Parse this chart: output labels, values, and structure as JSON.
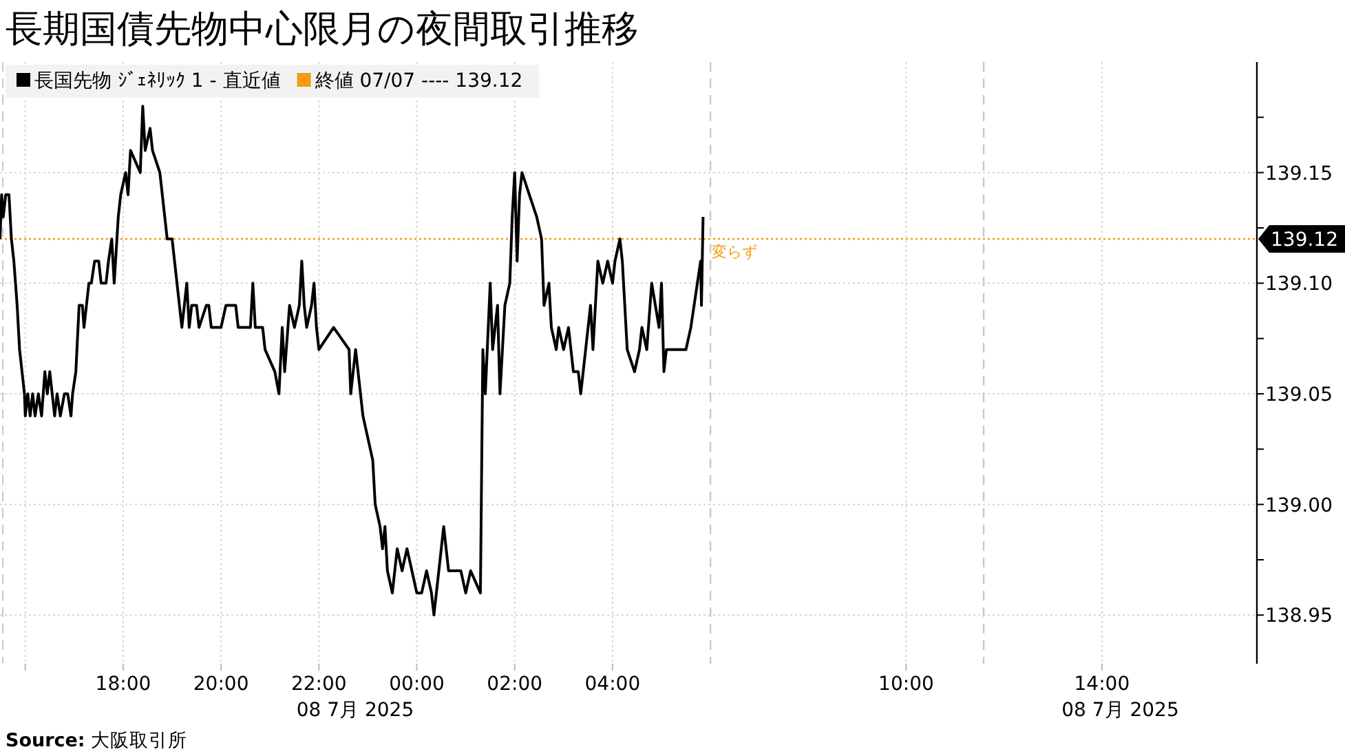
{
  "chart_data": {
    "type": "line",
    "title": "長期国債先物中心限月の夜間取引推移",
    "xlim": [
      "2025-07-07T15:29",
      "2025-07-08T17:10"
    ],
    "ylim": [
      138.928,
      139.2
    ],
    "xticks": [
      {
        "value": "2025-07-07T16:00",
        "label": null
      },
      {
        "value": "2025-07-07T18:00",
        "label": "18:00"
      },
      {
        "value": "2025-07-07T20:00",
        "label": "20:00"
      },
      {
        "value": "2025-07-07T22:00",
        "label": "22:00"
      },
      {
        "value": "2025-07-08T00:00",
        "label": "00:00"
      },
      {
        "value": "2025-07-08T02:00",
        "label": "02:00"
      },
      {
        "value": "2025-07-08T04:00",
        "label": "04:00"
      },
      {
        "value": "2025-07-08T10:00",
        "label": "10:00"
      },
      {
        "value": "2025-07-08T14:00",
        "label": "14:00"
      }
    ],
    "yticks": [
      138.95,
      {
        "value": 138.975,
        "label": null
      },
      {
        "value": 139.0,
        "label": "139.00"
      },
      {
        "value": 139.025,
        "label": null
      },
      139.05,
      {
        "value": 139.075,
        "label": null
      },
      {
        "value": 139.1,
        "label": "139.10"
      },
      {
        "value": 139.12,
        "label": "139.12"
      },
      {
        "value": 139.125,
        "label": null
      },
      139.15,
      {
        "value": 139.175,
        "label": null
      }
    ],
    "grid": true,
    "legend": "top left",
    "series": [
      {
        "name": "長国先物 ｼﾞｪﾈﾘｯｸ 1 - 直近値",
        "color": "#000000",
        "x": [
          "2025-07-07T15:29",
          "2025-07-07T15:31",
          "2025-07-07T15:33",
          "2025-07-07T15:36",
          "2025-07-07T15:40",
          "2025-07-07T15:43",
          "2025-07-07T15:46",
          "2025-07-07T15:48",
          "2025-07-07T15:50",
          "2025-07-07T15:53",
          "2025-07-07T15:56",
          "2025-07-07T15:59",
          "2025-07-07T16:00",
          "2025-07-07T16:03",
          "2025-07-07T16:06",
          "2025-07-07T16:09",
          "2025-07-07T16:12",
          "2025-07-07T16:16",
          "2025-07-07T16:20",
          "2025-07-07T16:24",
          "2025-07-07T16:27",
          "2025-07-07T16:30",
          "2025-07-07T16:33",
          "2025-07-07T16:36",
          "2025-07-07T16:39",
          "2025-07-07T16:43",
          "2025-07-07T16:48",
          "2025-07-07T16:52",
          "2025-07-07T16:56",
          "2025-07-07T16:58",
          "2025-07-07T17:02",
          "2025-07-07T17:06",
          "2025-07-07T17:10",
          "2025-07-07T17:12",
          "2025-07-07T17:18",
          "2025-07-07T17:21",
          "2025-07-07T17:25",
          "2025-07-07T17:30",
          "2025-07-07T17:33",
          "2025-07-07T17:39",
          "2025-07-07T17:42",
          "2025-07-07T17:46",
          "2025-07-07T17:49",
          "2025-07-07T17:54",
          "2025-07-07T17:57",
          "2025-07-07T18:03",
          "2025-07-07T18:06",
          "2025-07-07T18:09",
          "2025-07-07T18:21",
          "2025-07-07T18:24",
          "2025-07-07T18:27",
          "2025-07-07T18:33",
          "2025-07-07T18:36",
          "2025-07-07T18:45",
          "2025-07-07T18:51",
          "2025-07-07T18:54",
          "2025-07-07T19:00",
          "2025-07-07T19:03",
          "2025-07-07T19:06",
          "2025-07-07T19:09",
          "2025-07-07T19:12",
          "2025-07-07T19:15",
          "2025-07-07T19:18",
          "2025-07-07T19:21",
          "2025-07-07T19:24",
          "2025-07-07T19:30",
          "2025-07-07T19:33",
          "2025-07-07T19:42",
          "2025-07-07T19:45",
          "2025-07-07T19:48",
          "2025-07-07T20:00",
          "2025-07-07T20:06",
          "2025-07-07T20:18",
          "2025-07-07T20:21",
          "2025-07-07T20:36",
          "2025-07-07T20:39",
          "2025-07-07T20:42",
          "2025-07-07T20:51",
          "2025-07-07T20:54",
          "2025-07-07T21:06",
          "2025-07-07T21:11",
          "2025-07-07T21:15",
          "2025-07-07T21:18",
          "2025-07-07T21:24",
          "2025-07-07T21:30",
          "2025-07-07T21:36",
          "2025-07-07T21:39",
          "2025-07-07T21:42",
          "2025-07-07T21:45",
          "2025-07-07T21:51",
          "2025-07-07T21:54",
          "2025-07-07T21:57",
          "2025-07-07T22:00",
          "2025-07-07T22:18",
          "2025-07-07T22:37",
          "2025-07-07T22:39",
          "2025-07-07T22:42",
          "2025-07-07T22:45",
          "2025-07-07T22:48",
          "2025-07-07T22:51",
          "2025-07-07T22:54",
          "2025-07-07T23:00",
          "2025-07-07T23:06",
          "2025-07-07T23:09",
          "2025-07-07T23:15",
          "2025-07-07T23:18",
          "2025-07-07T23:21",
          "2025-07-07T23:24",
          "2025-07-07T23:30",
          "2025-07-07T23:33",
          "2025-07-07T23:36",
          "2025-07-07T23:42",
          "2025-07-07T23:48",
          "2025-07-07T23:54",
          "2025-07-08T00:00",
          "2025-07-08T00:06",
          "2025-07-08T00:12",
          "2025-07-08T00:18",
          "2025-07-08T00:21",
          "2025-07-08T00:24",
          "2025-07-08T00:30",
          "2025-07-08T00:33",
          "2025-07-08T00:39",
          "2025-07-08T00:54",
          "2025-07-08T01:00",
          "2025-07-08T01:06",
          "2025-07-08T01:18",
          "2025-07-08T01:21",
          "2025-07-08T01:24",
          "2025-07-08T01:30",
          "2025-07-08T01:33",
          "2025-07-08T01:39",
          "2025-07-08T01:42",
          "2025-07-08T01:48",
          "2025-07-08T01:54",
          "2025-07-08T01:57",
          "2025-07-08T02:00",
          "2025-07-08T02:03",
          "2025-07-08T02:06",
          "2025-07-08T02:09",
          "2025-07-08T02:18",
          "2025-07-08T02:27",
          "2025-07-08T02:33",
          "2025-07-08T02:36",
          "2025-07-08T02:42",
          "2025-07-08T02:45",
          "2025-07-08T02:51",
          "2025-07-08T02:54",
          "2025-07-08T03:00",
          "2025-07-08T03:06",
          "2025-07-08T03:12",
          "2025-07-08T03:18",
          "2025-07-08T03:21",
          "2025-07-08T03:27",
          "2025-07-08T03:33",
          "2025-07-08T03:36",
          "2025-07-08T03:42",
          "2025-07-08T03:48",
          "2025-07-08T03:54",
          "2025-07-08T04:00",
          "2025-07-08T04:03",
          "2025-07-08T04:09",
          "2025-07-08T04:12",
          "2025-07-08T04:18",
          "2025-07-08T04:27",
          "2025-07-08T04:33",
          "2025-07-08T04:36",
          "2025-07-08T04:42",
          "2025-07-08T04:48",
          "2025-07-08T04:57",
          "2025-07-08T05:00",
          "2025-07-08T05:03",
          "2025-07-08T05:06",
          "2025-07-08T05:30",
          "2025-07-08T05:36",
          "2025-07-08T05:48",
          "2025-07-08T05:49",
          "2025-07-08T05:51"
        ],
        "values": [
          139.12,
          139.14,
          139.13,
          139.14,
          139.14,
          139.12,
          139.11,
          139.1,
          139.09,
          139.07,
          139.06,
          139.05,
          139.04,
          139.05,
          139.04,
          139.05,
          139.04,
          139.05,
          139.04,
          139.06,
          139.05,
          139.06,
          139.05,
          139.04,
          139.05,
          139.04,
          139.05,
          139.05,
          139.04,
          139.05,
          139.06,
          139.09,
          139.09,
          139.08,
          139.1,
          139.1,
          139.11,
          139.11,
          139.1,
          139.1,
          139.11,
          139.12,
          139.1,
          139.13,
          139.14,
          139.15,
          139.14,
          139.16,
          139.15,
          139.18,
          139.16,
          139.17,
          139.16,
          139.15,
          139.13,
          139.12,
          139.12,
          139.11,
          139.1,
          139.09,
          139.08,
          139.09,
          139.1,
          139.08,
          139.09,
          139.09,
          139.08,
          139.09,
          139.09,
          139.08,
          139.08,
          139.09,
          139.09,
          139.08,
          139.08,
          139.1,
          139.08,
          139.08,
          139.07,
          139.06,
          139.05,
          139.08,
          139.06,
          139.09,
          139.08,
          139.09,
          139.11,
          139.09,
          139.08,
          139.09,
          139.1,
          139.08,
          139.07,
          139.08,
          139.07,
          139.05,
          139.06,
          139.07,
          139.06,
          139.05,
          139.04,
          139.03,
          139.02,
          139.0,
          138.99,
          138.98,
          138.99,
          138.97,
          138.96,
          138.97,
          138.98,
          138.97,
          138.98,
          138.97,
          138.96,
          138.96,
          138.97,
          138.96,
          138.95,
          138.96,
          138.98,
          138.99,
          138.97,
          138.97,
          138.96,
          138.97,
          138.96,
          139.07,
          139.05,
          139.1,
          139.07,
          139.09,
          139.05,
          139.09,
          139.1,
          139.13,
          139.15,
          139.11,
          139.14,
          139.15,
          139.14,
          139.13,
          139.12,
          139.09,
          139.1,
          139.08,
          139.07,
          139.08,
          139.07,
          139.08,
          139.06,
          139.06,
          139.05,
          139.07,
          139.09,
          139.07,
          139.11,
          139.1,
          139.11,
          139.1,
          139.11,
          139.12,
          139.11,
          139.07,
          139.06,
          139.07,
          139.08,
          139.07,
          139.1,
          139.08,
          139.1,
          139.06,
          139.07,
          139.07,
          139.08,
          139.11,
          139.09,
          139.13
        ]
      }
    ],
    "ref_lines": [
      {
        "axis": "y",
        "value": 139.12,
        "label": "終値 07/07 ---- 139.12",
        "color": "#f39c12",
        "line_style": "dotted"
      },
      {
        "axis": "x",
        "value": "2025-07-08T06:00",
        "color": "#c8c8c8",
        "line_style": "dashed"
      },
      {
        "axis": "x",
        "value": "2025-07-08T11:35",
        "color": "#c8c8c8",
        "line_style": "dashed"
      }
    ],
    "annotations": [
      {
        "text": "変らず",
        "x": "2025-07-08T06:00",
        "y": 139.12
      },
      "08 7月 2025",
      "08 7月 2025",
      "**Source:** 大阪取引所"
    ]
  }
}
